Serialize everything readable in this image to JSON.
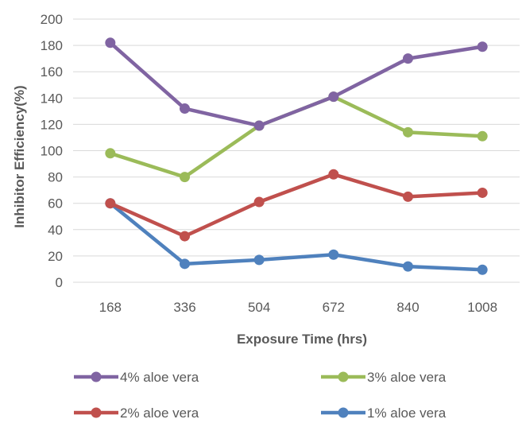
{
  "chart_data": {
    "type": "line",
    "xlabel": "Exposure Time (hrs)",
    "ylabel": "Inhibitor Efficiency(%)",
    "categories": [
      "168",
      "336",
      "504",
      "672",
      "840",
      "1008"
    ],
    "ylim": [
      0,
      200
    ],
    "yticks": [
      "0",
      "20",
      "40",
      "60",
      "80",
      "100",
      "120",
      "140",
      "160",
      "180",
      "200"
    ],
    "grid": true,
    "legend_position": "bottom",
    "series": [
      {
        "name": "1% aloe vera",
        "color": "#4f81bd",
        "values": [
          60,
          14,
          17,
          21,
          12,
          9.5
        ]
      },
      {
        "name": "2% aloe vera",
        "color": "#c0504d",
        "values": [
          60,
          35,
          61,
          82,
          65,
          68
        ]
      },
      {
        "name": "3% aloe vera",
        "color": "#9bbb59",
        "values": [
          98,
          80,
          119,
          141,
          114,
          111
        ]
      },
      {
        "name": "4% aloe vera",
        "color": "#8064a2",
        "values": [
          182,
          132,
          119,
          141,
          170,
          179
        ]
      }
    ],
    "legend_order": [
      "4% aloe vera",
      "3% aloe vera",
      "2% aloe vera",
      "1% aloe vera"
    ]
  }
}
